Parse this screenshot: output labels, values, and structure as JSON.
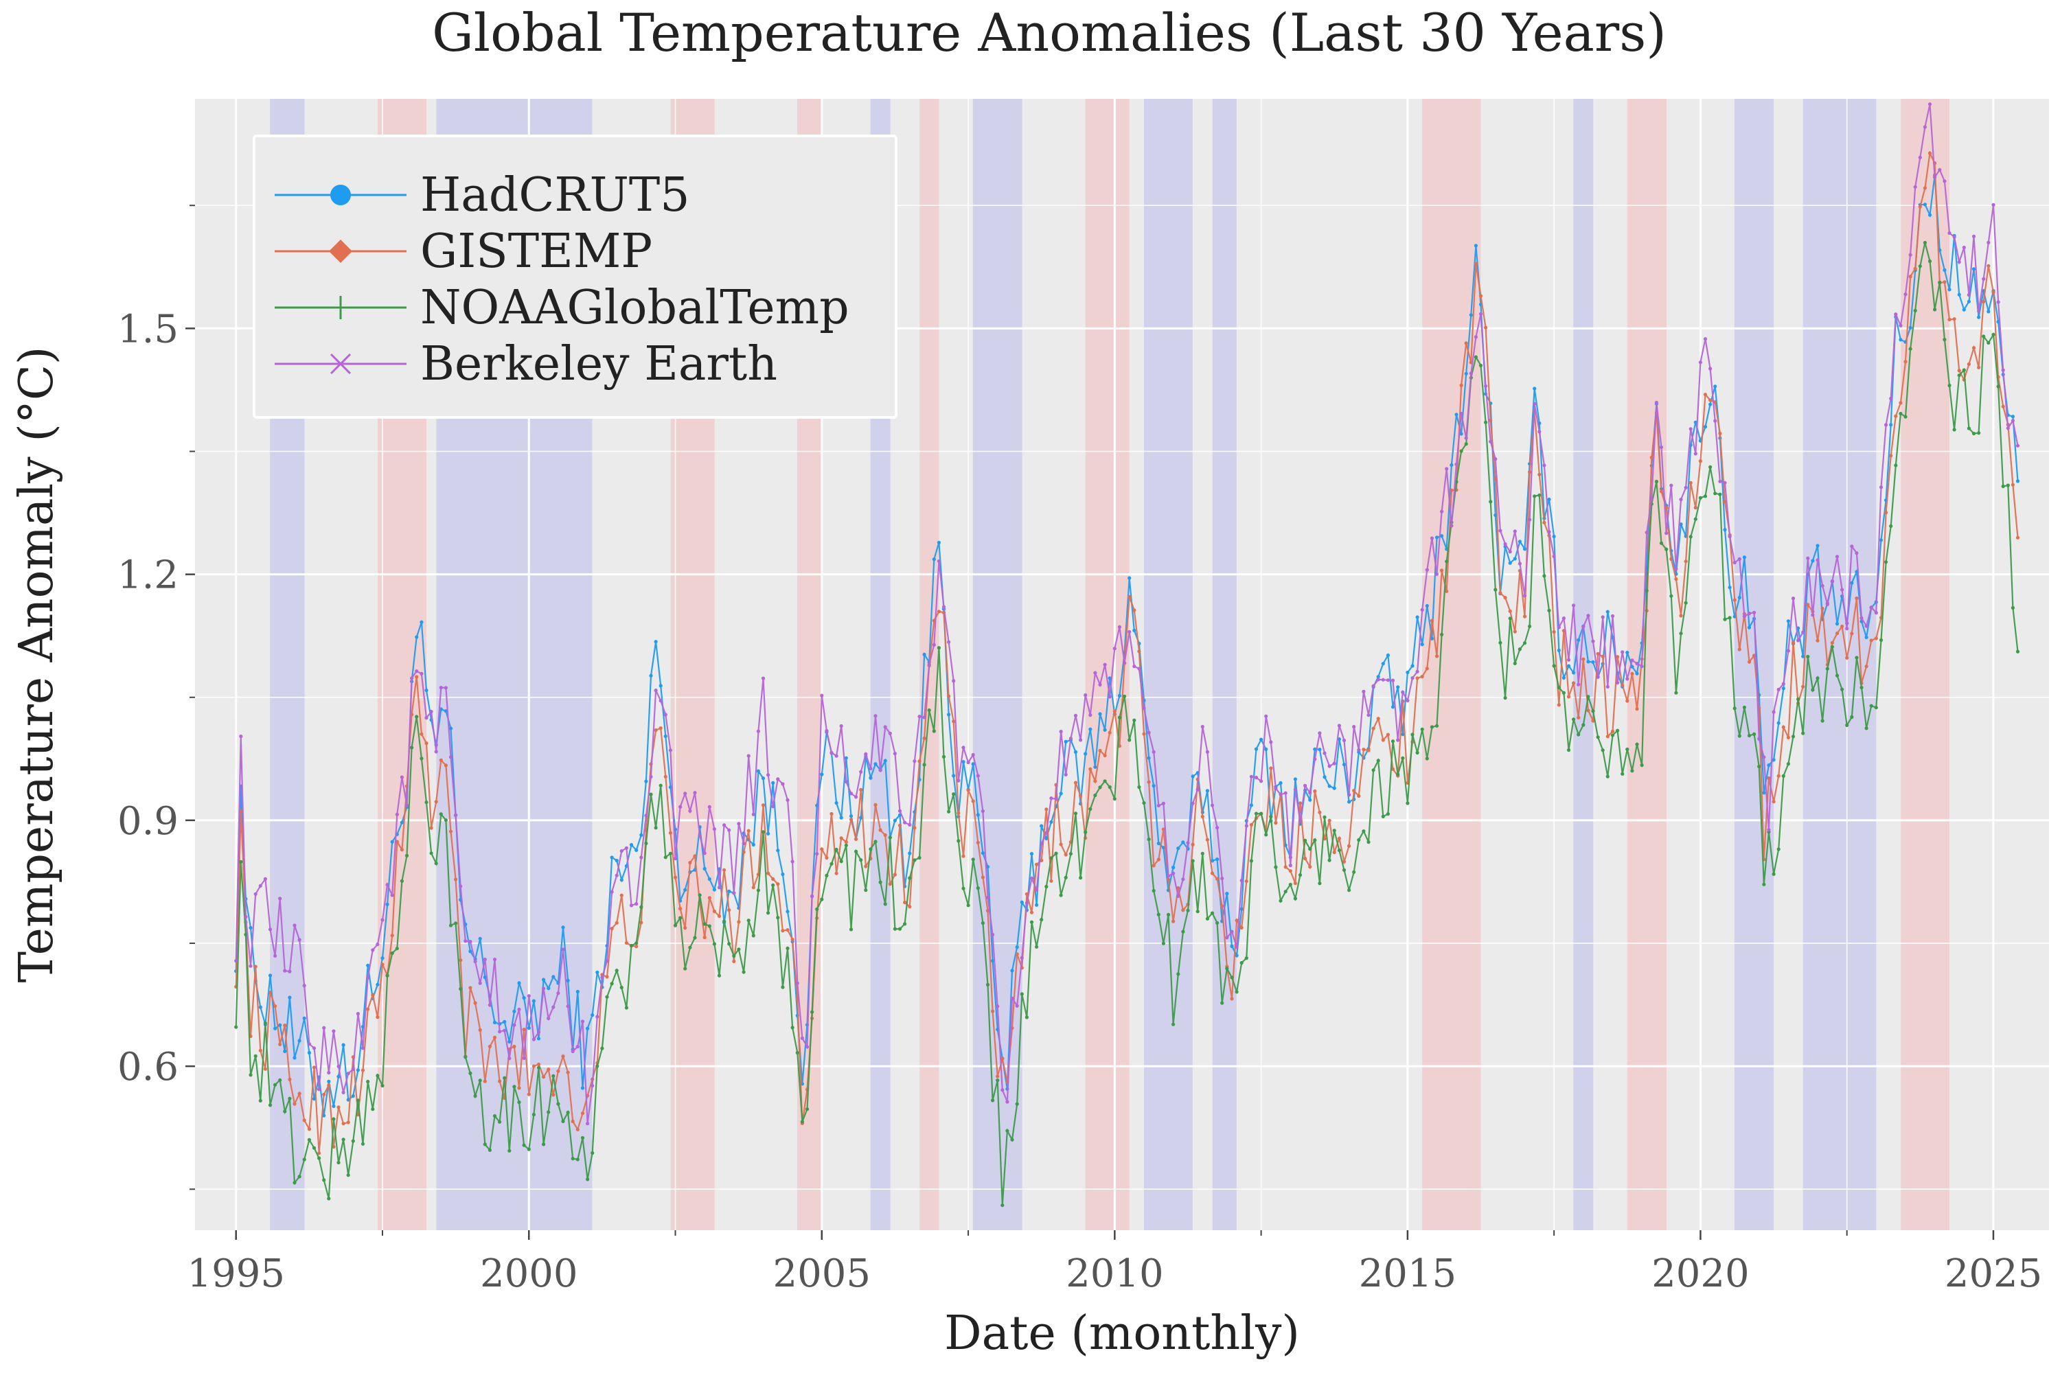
{
  "chart_data": {
    "type": "line",
    "title": "Global Temperature Anomalies (Last 30 Years)",
    "xlabel": "Date (monthly)",
    "ylabel": "Temperature Anomaly (°C)",
    "xlim": [
      1994.3,
      2025.95
    ],
    "ylim": [
      0.4,
      1.78
    ],
    "x_ticks": [
      1995,
      2000,
      2005,
      2010,
      2015,
      2020,
      2025
    ],
    "y_ticks": [
      0.6,
      0.9,
      1.2,
      1.5
    ],
    "grid": true,
    "legend_position": "top-left",
    "series_colors": {
      "HadCRUT5": "#1f9bf0",
      "GISTEMP": "#e07050",
      "NOAAGlobalTemp": "#3d9a4a",
      "Berkeley Earth": "#b565d8"
    },
    "shading_colors": {
      "la_nina": "#c8c8ec",
      "el_nino": "#f0c8c8"
    },
    "shaded_periods": [
      {
        "type": "la_nina",
        "start": 1995.58,
        "end": 1996.17
      },
      {
        "type": "el_nino",
        "start": 1997.42,
        "end": 1998.25
      },
      {
        "type": "la_nina",
        "start": 1998.42,
        "end": 2001.08
      },
      {
        "type": "el_nino",
        "start": 2002.42,
        "end": 2003.17
      },
      {
        "type": "el_nino",
        "start": 2004.58,
        "end": 2005.0
      },
      {
        "type": "la_nina",
        "start": 2005.83,
        "end": 2006.17
      },
      {
        "type": "el_nino",
        "start": 2006.67,
        "end": 2007.0
      },
      {
        "type": "la_nina",
        "start": 2007.58,
        "end": 2008.42
      },
      {
        "type": "el_nino",
        "start": 2009.5,
        "end": 2010.25
      },
      {
        "type": "la_nina",
        "start": 2010.5,
        "end": 2011.33
      },
      {
        "type": "la_nina",
        "start": 2011.67,
        "end": 2012.08
      },
      {
        "type": "el_nino",
        "start": 2015.25,
        "end": 2016.25
      },
      {
        "type": "la_nina",
        "start": 2017.83,
        "end": 2018.17
      },
      {
        "type": "el_nino",
        "start": 2018.75,
        "end": 2019.42
      },
      {
        "type": "la_nina",
        "start": 2020.58,
        "end": 2021.25
      },
      {
        "type": "la_nina",
        "start": 2021.75,
        "end": 2023.0
      },
      {
        "type": "el_nino",
        "start": 2023.42,
        "end": 2024.25
      }
    ],
    "anchors": {
      "HadCRUT5": [
        [
          1995.0,
          0.77
        ],
        [
          1995.1,
          1.0
        ],
        [
          1995.2,
          0.72
        ],
        [
          1995.5,
          0.7
        ],
        [
          1996.0,
          0.62
        ],
        [
          1996.5,
          0.58
        ],
        [
          1997.0,
          0.6
        ],
        [
          1997.5,
          0.75
        ],
        [
          1997.9,
          0.95
        ],
        [
          1998.1,
          1.15
        ],
        [
          1998.3,
          0.98
        ],
        [
          1998.6,
          1.02
        ],
        [
          1998.9,
          0.75
        ],
        [
          1999.3,
          0.7
        ],
        [
          1999.7,
          0.64
        ],
        [
          2000.2,
          0.68
        ],
        [
          2000.6,
          0.72
        ],
        [
          2001.0,
          0.6
        ],
        [
          2001.4,
          0.82
        ],
        [
          2001.9,
          0.86
        ],
        [
          2002.2,
          1.15
        ],
        [
          2002.5,
          0.86
        ],
        [
          2003.0,
          0.84
        ],
        [
          2003.5,
          0.82
        ],
        [
          2004.0,
          0.95
        ],
        [
          2004.5,
          0.8
        ],
        [
          2004.7,
          0.58
        ],
        [
          2005.0,
          0.98
        ],
        [
          2005.5,
          0.92
        ],
        [
          2006.0,
          0.96
        ],
        [
          2006.5,
          0.85
        ],
        [
          2007.0,
          1.25
        ],
        [
          2007.3,
          0.95
        ],
        [
          2007.7,
          0.9
        ],
        [
          2008.1,
          0.58
        ],
        [
          2008.5,
          0.8
        ],
        [
          2009.0,
          0.95
        ],
        [
          2009.5,
          0.96
        ],
        [
          2010.0,
          1.05
        ],
        [
          2010.3,
          1.2
        ],
        [
          2010.6,
          0.95
        ],
        [
          2011.0,
          0.8
        ],
        [
          2011.5,
          0.95
        ],
        [
          2012.0,
          0.75
        ],
        [
          2012.5,
          0.98
        ],
        [
          2013.0,
          0.9
        ],
        [
          2013.5,
          0.96
        ],
        [
          2014.0,
          0.95
        ],
        [
          2014.5,
          1.05
        ],
        [
          2015.0,
          1.05
        ],
        [
          2015.5,
          1.2
        ],
        [
          2015.8,
          1.35
        ],
        [
          2016.2,
          1.58
        ],
        [
          2016.6,
          1.2
        ],
        [
          2017.0,
          1.2
        ],
        [
          2017.2,
          1.42
        ],
        [
          2017.6,
          1.12
        ],
        [
          2018.0,
          1.12
        ],
        [
          2018.5,
          1.1
        ],
        [
          2019.0,
          1.1
        ],
        [
          2019.2,
          1.42
        ],
        [
          2019.6,
          1.2
        ],
        [
          2020.0,
          1.4
        ],
        [
          2020.2,
          1.45
        ],
        [
          2020.6,
          1.15
        ],
        [
          2020.9,
          1.2
        ],
        [
          2021.1,
          0.9
        ],
        [
          2021.5,
          1.1
        ],
        [
          2022.0,
          1.18
        ],
        [
          2022.5,
          1.15
        ],
        [
          2023.0,
          1.15
        ],
        [
          2023.3,
          1.45
        ],
        [
          2023.6,
          1.55
        ],
        [
          2023.9,
          1.68
        ],
        [
          2024.2,
          1.6
        ],
        [
          2024.6,
          1.52
        ],
        [
          2025.0,
          1.57
        ],
        [
          2025.4,
          1.3
        ]
      ],
      "GISTEMP": [
        [
          1995.0,
          0.75
        ],
        [
          1995.1,
          0.9
        ],
        [
          1995.2,
          0.69
        ],
        [
          1995.5,
          0.65
        ],
        [
          1996.0,
          0.58
        ],
        [
          1996.5,
          0.54
        ],
        [
          1997.0,
          0.57
        ],
        [
          1997.5,
          0.7
        ],
        [
          1997.9,
          0.9
        ],
        [
          1998.1,
          1.1
        ],
        [
          1998.3,
          0.92
        ],
        [
          1998.6,
          0.95
        ],
        [
          1998.9,
          0.66
        ],
        [
          1999.3,
          0.6
        ],
        [
          1999.7,
          0.6
        ],
        [
          2000.2,
          0.6
        ],
        [
          2000.6,
          0.6
        ],
        [
          2001.0,
          0.55
        ],
        [
          2001.4,
          0.74
        ],
        [
          2001.9,
          0.8
        ],
        [
          2002.2,
          1.0
        ],
        [
          2002.5,
          0.82
        ],
        [
          2003.0,
          0.8
        ],
        [
          2003.5,
          0.78
        ],
        [
          2004.0,
          0.9
        ],
        [
          2004.5,
          0.75
        ],
        [
          2004.7,
          0.52
        ],
        [
          2005.0,
          0.9
        ],
        [
          2005.5,
          0.88
        ],
        [
          2006.0,
          0.9
        ],
        [
          2006.5,
          0.82
        ],
        [
          2007.0,
          1.2
        ],
        [
          2007.3,
          0.92
        ],
        [
          2007.7,
          0.85
        ],
        [
          2008.1,
          0.55
        ],
        [
          2008.5,
          0.78
        ],
        [
          2009.0,
          0.9
        ],
        [
          2009.5,
          0.92
        ],
        [
          2010.0,
          1.0
        ],
        [
          2010.3,
          1.15
        ],
        [
          2010.6,
          0.92
        ],
        [
          2011.0,
          0.78
        ],
        [
          2011.5,
          0.92
        ],
        [
          2012.0,
          0.72
        ],
        [
          2012.5,
          0.95
        ],
        [
          2013.0,
          0.85
        ],
        [
          2013.5,
          0.92
        ],
        [
          2014.0,
          0.9
        ],
        [
          2014.5,
          1.0
        ],
        [
          2015.0,
          1.0
        ],
        [
          2015.5,
          1.15
        ],
        [
          2015.8,
          1.3
        ],
        [
          2016.2,
          1.58
        ],
        [
          2016.6,
          1.18
        ],
        [
          2017.0,
          1.18
        ],
        [
          2017.2,
          1.4
        ],
        [
          2017.6,
          1.08
        ],
        [
          2018.0,
          1.08
        ],
        [
          2018.5,
          1.05
        ],
        [
          2019.0,
          1.06
        ],
        [
          2019.2,
          1.4
        ],
        [
          2019.6,
          1.16
        ],
        [
          2020.0,
          1.35
        ],
        [
          2020.2,
          1.45
        ],
        [
          2020.6,
          1.12
        ],
        [
          2020.9,
          1.15
        ],
        [
          2021.1,
          0.88
        ],
        [
          2021.5,
          1.05
        ],
        [
          2022.0,
          1.15
        ],
        [
          2022.5,
          1.12
        ],
        [
          2023.0,
          1.12
        ],
        [
          2023.3,
          1.4
        ],
        [
          2023.6,
          1.52
        ],
        [
          2023.9,
          1.7
        ],
        [
          2024.2,
          1.55
        ],
        [
          2024.6,
          1.45
        ],
        [
          2025.0,
          1.55
        ],
        [
          2025.4,
          1.26
        ]
      ],
      "NOAAGlobalTemp": [
        [
          1995.0,
          0.7
        ],
        [
          1995.1,
          0.9
        ],
        [
          1995.2,
          0.63
        ],
        [
          1995.5,
          0.6
        ],
        [
          1996.0,
          0.5
        ],
        [
          1996.5,
          0.48
        ],
        [
          1997.0,
          0.5
        ],
        [
          1997.5,
          0.62
        ],
        [
          1997.9,
          0.85
        ],
        [
          1998.1,
          1.05
        ],
        [
          1998.3,
          0.85
        ],
        [
          1998.6,
          0.88
        ],
        [
          1998.9,
          0.62
        ],
        [
          1999.3,
          0.55
        ],
        [
          1999.7,
          0.55
        ],
        [
          2000.2,
          0.55
        ],
        [
          2000.6,
          0.56
        ],
        [
          2001.0,
          0.48
        ],
        [
          2001.4,
          0.68
        ],
        [
          2001.9,
          0.75
        ],
        [
          2002.2,
          0.96
        ],
        [
          2002.5,
          0.78
        ],
        [
          2003.0,
          0.75
        ],
        [
          2003.5,
          0.72
        ],
        [
          2004.0,
          0.85
        ],
        [
          2004.5,
          0.7
        ],
        [
          2004.7,
          0.52
        ],
        [
          2005.0,
          0.85
        ],
        [
          2005.5,
          0.82
        ],
        [
          2006.0,
          0.85
        ],
        [
          2006.5,
          0.78
        ],
        [
          2007.0,
          1.08
        ],
        [
          2007.3,
          0.85
        ],
        [
          2007.7,
          0.78
        ],
        [
          2008.1,
          0.45
        ],
        [
          2008.5,
          0.7
        ],
        [
          2009.0,
          0.85
        ],
        [
          2009.5,
          0.88
        ],
        [
          2010.0,
          0.95
        ],
        [
          2010.3,
          1.05
        ],
        [
          2010.6,
          0.85
        ],
        [
          2011.0,
          0.7
        ],
        [
          2011.5,
          0.85
        ],
        [
          2012.0,
          0.67
        ],
        [
          2012.5,
          0.9
        ],
        [
          2013.0,
          0.8
        ],
        [
          2013.5,
          0.87
        ],
        [
          2014.0,
          0.85
        ],
        [
          2014.5,
          0.95
        ],
        [
          2015.0,
          0.95
        ],
        [
          2015.5,
          1.05
        ],
        [
          2015.8,
          1.25
        ],
        [
          2016.2,
          1.48
        ],
        [
          2016.6,
          1.1
        ],
        [
          2017.0,
          1.1
        ],
        [
          2017.2,
          1.3
        ],
        [
          2017.6,
          1.02
        ],
        [
          2018.0,
          1.0
        ],
        [
          2018.5,
          1.0
        ],
        [
          2019.0,
          1.02
        ],
        [
          2019.2,
          1.3
        ],
        [
          2019.6,
          1.1
        ],
        [
          2020.0,
          1.28
        ],
        [
          2020.2,
          1.35
        ],
        [
          2020.6,
          1.05
        ],
        [
          2020.9,
          1.05
        ],
        [
          2021.1,
          0.8
        ],
        [
          2021.5,
          1.0
        ],
        [
          2022.0,
          1.08
        ],
        [
          2022.5,
          1.05
        ],
        [
          2023.0,
          1.05
        ],
        [
          2023.3,
          1.3
        ],
        [
          2023.6,
          1.45
        ],
        [
          2023.9,
          1.62
        ],
        [
          2024.2,
          1.45
        ],
        [
          2024.6,
          1.38
        ],
        [
          2025.0,
          1.48
        ],
        [
          2025.4,
          1.15
        ]
      ],
      "Berkeley Earth": [
        [
          1995.0,
          0.78
        ],
        [
          1995.1,
          1.0
        ],
        [
          1995.2,
          0.74
        ],
        [
          1995.5,
          0.78
        ],
        [
          1996.0,
          0.72
        ],
        [
          1996.5,
          0.6
        ],
        [
          1997.0,
          0.62
        ],
        [
          1997.5,
          0.78
        ],
        [
          1997.9,
          0.95
        ],
        [
          1998.1,
          1.1
        ],
        [
          1998.3,
          0.98
        ],
        [
          1998.6,
          1.04
        ],
        [
          1998.9,
          0.72
        ],
        [
          1999.3,
          0.7
        ],
        [
          1999.7,
          0.62
        ],
        [
          2000.2,
          0.66
        ],
        [
          2000.6,
          0.7
        ],
        [
          2001.0,
          0.58
        ],
        [
          2001.4,
          0.8
        ],
        [
          2001.9,
          0.85
        ],
        [
          2002.2,
          1.1
        ],
        [
          2002.5,
          0.88
        ],
        [
          2003.0,
          0.88
        ],
        [
          2003.5,
          0.84
        ],
        [
          2004.0,
          1.02
        ],
        [
          2004.5,
          0.85
        ],
        [
          2004.7,
          0.6
        ],
        [
          2005.0,
          1.0
        ],
        [
          2005.5,
          0.95
        ],
        [
          2006.0,
          1.0
        ],
        [
          2006.5,
          0.88
        ],
        [
          2007.0,
          1.22
        ],
        [
          2007.3,
          1.0
        ],
        [
          2007.7,
          0.9
        ],
        [
          2008.1,
          0.56
        ],
        [
          2008.5,
          0.8
        ],
        [
          2009.0,
          0.95
        ],
        [
          2009.5,
          1.0
        ],
        [
          2010.0,
          1.08
        ],
        [
          2010.3,
          1.15
        ],
        [
          2010.6,
          0.98
        ],
        [
          2011.0,
          0.82
        ],
        [
          2011.5,
          0.98
        ],
        [
          2012.0,
          0.76
        ],
        [
          2012.5,
          1.0
        ],
        [
          2013.0,
          0.9
        ],
        [
          2013.5,
          0.98
        ],
        [
          2014.0,
          0.97
        ],
        [
          2014.5,
          1.05
        ],
        [
          2015.0,
          1.05
        ],
        [
          2015.5,
          1.22
        ],
        [
          2015.8,
          1.32
        ],
        [
          2016.2,
          1.52
        ],
        [
          2016.6,
          1.22
        ],
        [
          2017.0,
          1.22
        ],
        [
          2017.2,
          1.42
        ],
        [
          2017.6,
          1.12
        ],
        [
          2018.0,
          1.12
        ],
        [
          2018.5,
          1.1
        ],
        [
          2019.0,
          1.12
        ],
        [
          2019.2,
          1.38
        ],
        [
          2019.6,
          1.22
        ],
        [
          2020.0,
          1.42
        ],
        [
          2020.2,
          1.45
        ],
        [
          2020.6,
          1.18
        ],
        [
          2020.9,
          1.2
        ],
        [
          2021.1,
          0.9
        ],
        [
          2021.5,
          1.12
        ],
        [
          2022.0,
          1.2
        ],
        [
          2022.5,
          1.18
        ],
        [
          2023.0,
          1.18
        ],
        [
          2023.3,
          1.45
        ],
        [
          2023.6,
          1.58
        ],
        [
          2023.9,
          1.75
        ],
        [
          2024.2,
          1.62
        ],
        [
          2024.6,
          1.55
        ],
        [
          2025.0,
          1.62
        ],
        [
          2025.4,
          1.32
        ]
      ]
    },
    "legend": [
      "HadCRUT5",
      "GISTEMP",
      "NOAAGlobalTemp",
      "Berkeley Earth"
    ]
  }
}
